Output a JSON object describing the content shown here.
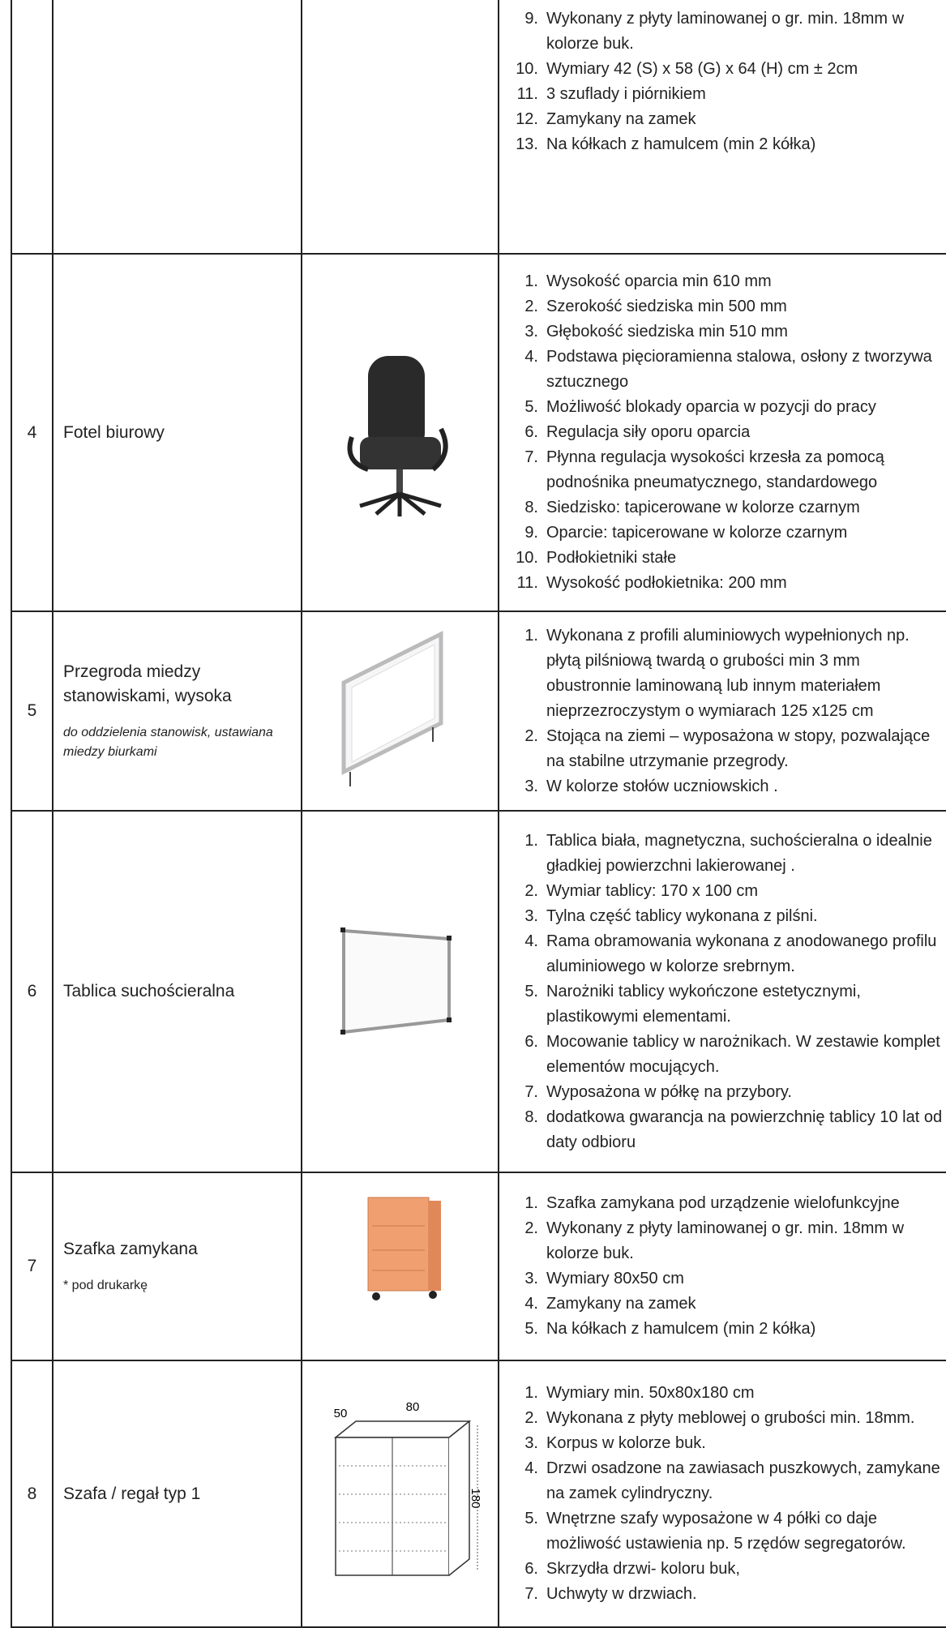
{
  "table": {
    "rows": [
      {
        "items": [
          {
            "num": "9.",
            "text": "Wykonany z płyty laminowanej o gr. min. 18mm w kolorze buk."
          },
          {
            "num": "10.",
            "text": "Wymiary 42 (S) x 58 (G) x 64 (H) cm ± 2cm"
          },
          {
            "num": "11.",
            "text": "3 szuflady i piórnikiem"
          },
          {
            "num": "12.",
            "text": "Zamykany na zamek"
          },
          {
            "num": "13.",
            "text": "Na kółkach z hamulcem (min 2 kółka)"
          }
        ]
      },
      {
        "number": "4",
        "name": "Fotel biurowy",
        "items": [
          {
            "num": "1.",
            "text": "Wysokość oparcia min 610 mm"
          },
          {
            "num": "2.",
            "text": "Szerokość siedziska min 500 mm"
          },
          {
            "num": "3.",
            "text": "Głębokość siedziska min 510 mm"
          },
          {
            "num": "4.",
            "text": "Podstawa pięcioramienna stalowa, osłony z tworzywa sztucznego"
          },
          {
            "num": "5.",
            "text": "Możliwość blokady oparcia w pozycji do pracy"
          },
          {
            "num": "6.",
            "text": "Regulacja siły oporu oparcia"
          },
          {
            "num": "7.",
            "text": "Płynna regulacja wysokości krzesła za pomocą podnośnika pneumatycznego, standardowego"
          },
          {
            "num": "8.",
            "text": "Siedzisko: tapicerowane w kolorze czarnym"
          },
          {
            "num": "9.",
            "text": "Oparcie: tapicerowane w kolorze czarnym"
          },
          {
            "num": "10.",
            "text": "Podłokietniki stałe"
          },
          {
            "num": "11.",
            "text": "Wysokość podłokietnika: 200 mm"
          }
        ]
      },
      {
        "number": "5",
        "name": "Przegroda miedzy stanowiskami, wysoka",
        "note": "do oddzielenia stanowisk, ustawiana miedzy biurkami",
        "items": [
          {
            "num": "1.",
            "text": "Wykonana z profili aluminiowych wypełnionych np. płytą pilśniową twardą o grubości min 3 mm obustronnie laminowaną lub innym materiałem nieprzezroczystym o wymiarach 125 x125 cm"
          },
          {
            "num": "2.",
            "text": "Stojąca na ziemi – wyposażona w stopy, pozwalające na stabilne utrzymanie przegrody."
          },
          {
            "num": "3.",
            "text": "W kolorze stołów uczniowskich ."
          }
        ]
      },
      {
        "number": "6",
        "name": "Tablica suchościeralna",
        "items": [
          {
            "num": "1.",
            "text": "Tablica biała, magnetyczna, suchościeralna o idealnie gładkiej powierzchni   lakierowanej ."
          },
          {
            "num": "2.",
            "text": "Wymiar tablicy: 170 x 100 cm"
          },
          {
            "num": "3.",
            "text": "Tylna część tablicy wykonana z pilśni."
          },
          {
            "num": "4.",
            "text": "Rama obramowania wykonana z anodowanego profilu aluminiowego w kolorze srebrnym."
          },
          {
            "num": "5.",
            "text": "Narożniki tablicy wykończone estetycznymi, plastikowymi elementami."
          },
          {
            "num": "6.",
            "text": "Mocowanie tablicy w narożnikach. W zestawie komplet elementów mocujących."
          },
          {
            "num": "7.",
            "text": "Wyposażona w półkę na przybory."
          },
          {
            "num": "8.",
            "text": "dodatkowa gwarancja na powierzchnię tablicy 10 lat od daty odbioru"
          }
        ]
      },
      {
        "number": "7",
        "name": "Szafka zamykana",
        "note": "* pod drukarkę",
        "items": [
          {
            "num": "1.",
            "text": "Szafka zamykana pod urządzenie wielofunkcyjne"
          },
          {
            "num": "2.",
            "text": "Wykonany z płyty laminowanej o gr. min. 18mm w kolorze buk."
          },
          {
            "num": "3.",
            "text": "Wymiary 80x50 cm"
          },
          {
            "num": "4.",
            "text": "Zamykany na zamek"
          },
          {
            "num": "5.",
            "text": "Na kółkach z hamulcem (min 2 kółka)"
          }
        ]
      },
      {
        "number": "8",
        "name": "Szafa / regał typ 1",
        "image_labels": [
          "50",
          "80",
          "180"
        ],
        "items": [
          {
            "num": "1.",
            "text": "Wymiary min. 50x80x180 cm"
          },
          {
            "num": "2.",
            "text": "Wykonana z płyty meblowej o grubości min. 18mm."
          },
          {
            "num": "3.",
            "text": "Korpus w kolorze buk."
          },
          {
            "num": "4.",
            "text": "Drzwi osadzone na zawiasach puszkowych, zamykane na zamek cylindryczny."
          },
          {
            "num": "5.",
            "text": "Wnętrzne szafy wyposażone w 4 półki co daje możliwość ustawienia np. 5 rzędów segregatorów."
          },
          {
            "num": "6.",
            "text": "Skrzydła drzwi- koloru buk,"
          },
          {
            "num": "7.",
            "text": "Uchwyty w drzwiach."
          }
        ]
      }
    ]
  }
}
